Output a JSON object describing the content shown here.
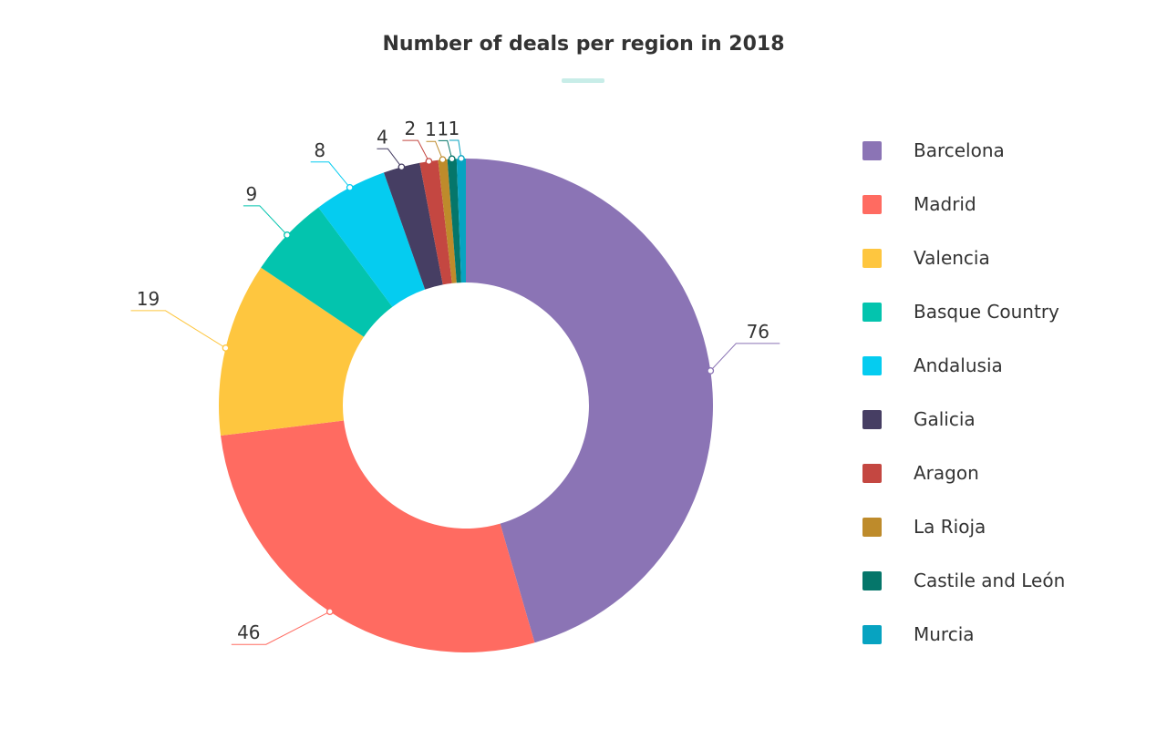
{
  "chart_data": {
    "type": "pie",
    "title": "Number of deals per region in 2018",
    "legend_position": "right",
    "categories": [
      "Barcelona",
      "Madrid",
      "Valencia",
      "Basque Country",
      "Andalusia",
      "Galicia",
      "Aragon",
      "La Rioja",
      "Castile and León",
      "Murcia"
    ],
    "values": [
      76,
      46,
      19,
      9,
      8,
      4,
      2,
      1,
      1,
      1
    ],
    "colors": [
      "#8b74b5",
      "#ff6b61",
      "#fec63f",
      "#03c4ae",
      "#05ccf0",
      "#463e63",
      "#c44741",
      "#be8b2b",
      "#05766a",
      "#07a3c1"
    ],
    "accent_color": "#c8ede8"
  }
}
